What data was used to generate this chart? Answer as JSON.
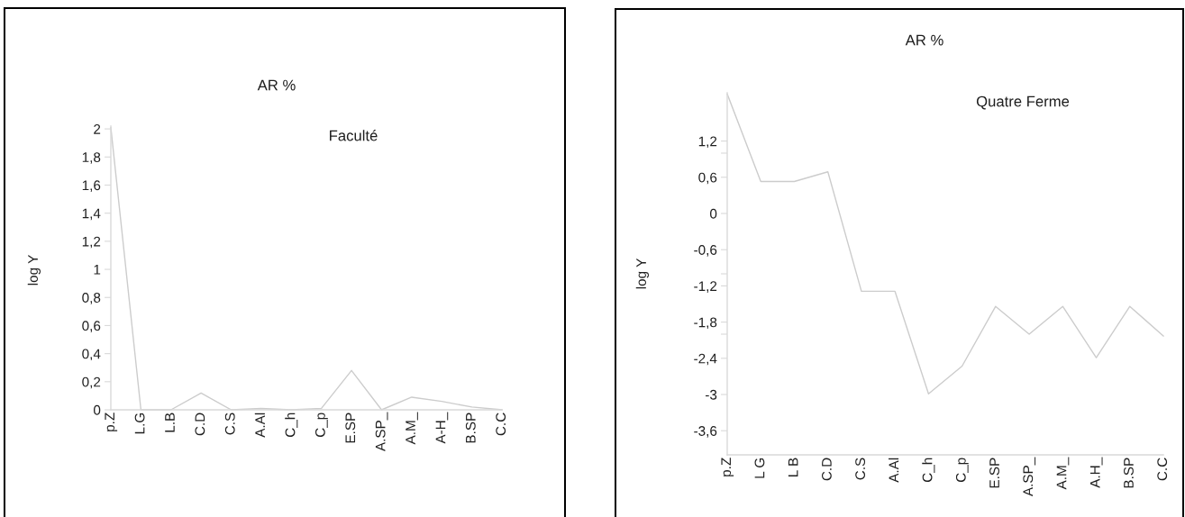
{
  "chart_data": [
    {
      "type": "line",
      "title": "AR %",
      "subtitle": "Faculté",
      "ylabel": "log Y",
      "categories": [
        "p.Z",
        "L.G",
        "L.B",
        "C.D",
        "C.S",
        "A.Al",
        "C_h",
        "C_p",
        "E.SP",
        "A.SP_",
        "A.M_",
        "A-H_",
        "B.SP",
        "C.C"
      ],
      "values": [
        2.01,
        0,
        0,
        0.12,
        0,
        0.01,
        0,
        0.01,
        0.28,
        0,
        0.09,
        0.06,
        0.02,
        0
      ],
      "color": "#cccccc",
      "ylim": [
        0,
        2.02
      ],
      "yticks": [
        0,
        {
          "value": 0.2,
          "label": "0,2"
        },
        {
          "value": 0.4,
          "label": "0,4"
        },
        {
          "value": 0.6,
          "label": "0,6"
        },
        {
          "value": 0.8,
          "label": "0,8"
        },
        1,
        {
          "value": 1.2,
          "label": "1,2"
        },
        {
          "value": 1.4,
          "label": "1,4"
        },
        {
          "value": 1.6,
          "label": "1,6"
        },
        {
          "value": 1.8,
          "label": "1,8"
        },
        2
      ]
    },
    {
      "type": "line",
      "title": "AR %",
      "subtitle": "Quatre Ferme",
      "ylabel": "log Y",
      "categories": [
        "p.Z",
        "L G",
        "L B",
        "C.D",
        "C.S",
        "A.Al",
        "C_h",
        "C_p",
        "E.SP",
        "A.SP_",
        "A.M_",
        "A.H_",
        "B.SP",
        "C.C"
      ],
      "values": [
        1.98,
        0.53,
        0.53,
        0.69,
        -1.29,
        -1.29,
        -2.99,
        -2.53,
        -1.54,
        -2.0,
        -1.54,
        -2.39,
        -1.54,
        -2.03
      ],
      "color": "#cccccc",
      "ylim": [
        -4,
        2
      ],
      "yticks": [
        {
          "value": -3.6,
          "label": "-3,6"
        },
        -3,
        {
          "value": -2.4,
          "label": "-2,4"
        },
        {
          "value": -1.8,
          "label": "-1,8"
        },
        {
          "value": -1.2,
          "label": "-1,2"
        },
        {
          "value": -0.6,
          "label": "-0,6"
        },
        0,
        {
          "value": 0.6,
          "label": "0,6"
        },
        {
          "value": 1.2,
          "label": "1,2"
        },
        {
          "value": 1,
          "label": null
        },
        {
          "value": -1,
          "label": null
        },
        {
          "value": -2,
          "label": null
        }
      ]
    }
  ]
}
